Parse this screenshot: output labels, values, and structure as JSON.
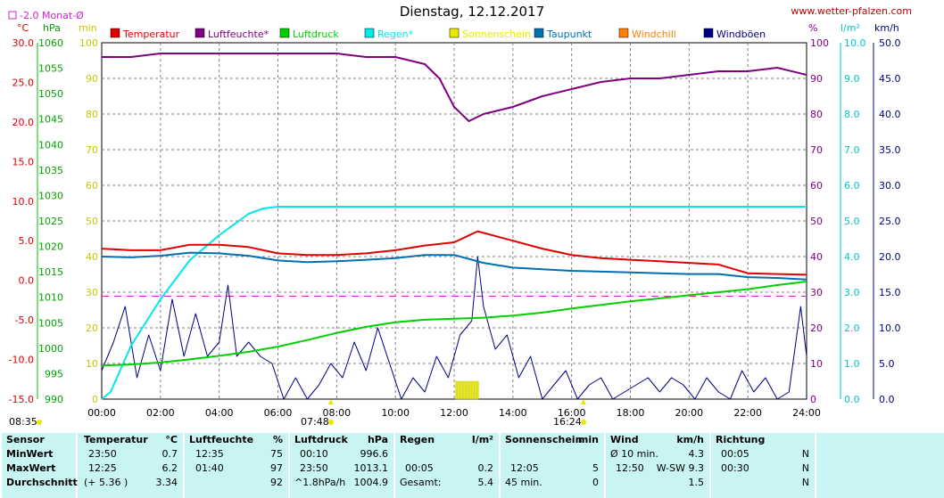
{
  "header": {
    "title": "Dienstag, 12.12.2017",
    "source": "www.wetter-pfalzen.com",
    "monthly_avg_note": "-2.0 Monat-Ø"
  },
  "axes": {
    "temp_unit": "°C",
    "press_unit": "hPa",
    "min_unit": "min",
    "pct_unit": "%",
    "rain_unit": "l/m²",
    "wind_unit": "km/h",
    "temp_ticks": [
      "30.0",
      "25.0",
      "20.0",
      "15.0",
      "10.0",
      "5.0",
      "0.0",
      "-5.0",
      "-10.0",
      "-15.0"
    ],
    "press_ticks": [
      "1060",
      "1055",
      "1050",
      "1045",
      "1040",
      "1035",
      "1030",
      "1025",
      "1020",
      "1015",
      "1010",
      "1005",
      "1000",
      "995",
      "990"
    ],
    "min_ticks": [
      "100",
      "90",
      "80",
      "70",
      "60",
      "50",
      "40",
      "30",
      "20",
      "10",
      "0"
    ],
    "pct_ticks": [
      "100",
      "90",
      "80",
      "70",
      "60",
      "50",
      "40",
      "30",
      "20",
      "10",
      "0"
    ],
    "rain_ticks": [
      "10.0",
      "9.0",
      "8.0",
      "7.0",
      "6.0",
      "5.0",
      "4.0",
      "3.0",
      "2.0",
      "1.0",
      "0.0"
    ],
    "wind_ticks": [
      "50.0",
      "45.0",
      "40.0",
      "35.0",
      "30.0",
      "25.0",
      "20.0",
      "15.0",
      "10.0",
      "5.0",
      "0.0"
    ],
    "time_ticks": [
      "00:00",
      "02:00",
      "04:00",
      "06:00",
      "08:00",
      "10:00",
      "12:00",
      "14:00",
      "16:00",
      "18:00",
      "20:00",
      "22:00",
      "24:00"
    ],
    "sunrise": "08:35",
    "noon_marker": "07:48",
    "sunset": "16:24"
  },
  "legend": [
    {
      "label": "Temperatur",
      "color": "#e00000"
    },
    {
      "label": "Luftfeuchte*",
      "color": "#800080"
    },
    {
      "label": "Luftdruck",
      "color": "#00d000"
    },
    {
      "label": "Regen*",
      "color": "#00e8e8"
    },
    {
      "label": "Sonnenschein",
      "color": "#e8e800"
    },
    {
      "label": "Taupunkt",
      "color": "#0070b0"
    },
    {
      "label": "Windchill",
      "color": "#ff8000"
    },
    {
      "label": "Windböen",
      "color": "#000080"
    }
  ],
  "chart_data": {
    "type": "line",
    "x_range": [
      "00:00",
      "24:00"
    ],
    "series": [
      {
        "name": "Temperatur",
        "unit": "°C",
        "x": [
          0,
          1,
          2,
          3,
          4,
          5,
          6,
          7,
          8,
          9,
          10,
          11,
          12,
          12.4,
          12.8,
          13.5,
          14,
          15,
          16,
          17,
          18,
          19,
          20,
          21,
          22,
          23,
          24
        ],
        "y": [
          4.0,
          3.8,
          3.8,
          4.5,
          4.5,
          4.2,
          3.4,
          3.2,
          3.2,
          3.4,
          3.8,
          4.4,
          4.8,
          5.5,
          6.2,
          5.5,
          5.0,
          4.0,
          3.2,
          2.8,
          2.6,
          2.4,
          2.2,
          2.0,
          0.9,
          0.8,
          0.7
        ]
      },
      {
        "name": "Luftfeuchte*",
        "unit": "%",
        "x": [
          0,
          1,
          2,
          3,
          4,
          5,
          6,
          7,
          8,
          9,
          10,
          11,
          11.5,
          12,
          12.5,
          13,
          13.5,
          14,
          15,
          16,
          17,
          18,
          19,
          20,
          21,
          22,
          23,
          24
        ],
        "y": [
          96,
          96,
          97,
          97,
          97,
          97,
          97,
          97,
          97,
          96,
          96,
          94,
          90,
          82,
          78,
          80,
          81,
          82,
          85,
          87,
          89,
          90,
          90,
          91,
          92,
          92,
          93,
          91
        ]
      },
      {
        "name": "Luftdruck",
        "unit": "hPa",
        "x": [
          0,
          1,
          2,
          3,
          4,
          5,
          6,
          7,
          8,
          9,
          10,
          11,
          12,
          13,
          14,
          15,
          16,
          17,
          18,
          19,
          20,
          21,
          22,
          23,
          24
        ],
        "y": [
          996.6,
          996.8,
          997.2,
          997.8,
          998.5,
          999.3,
          1000.3,
          1001.6,
          1003.0,
          1004.2,
          1005.1,
          1005.6,
          1005.8,
          1006.0,
          1006.4,
          1007.0,
          1007.8,
          1008.5,
          1009.2,
          1009.8,
          1010.4,
          1011.0,
          1011.6,
          1012.4,
          1013.1
        ]
      },
      {
        "name": "Regen*",
        "unit": "l/m²",
        "x": [
          0,
          0.3,
          1,
          2,
          3,
          4,
          5,
          5.5,
          6,
          24
        ],
        "y": [
          0.0,
          0.2,
          1.5,
          2.8,
          3.9,
          4.6,
          5.2,
          5.35,
          5.4,
          5.4
        ]
      },
      {
        "name": "Taupunkt",
        "unit": "°C",
        "x": [
          0,
          1,
          2,
          3,
          4,
          5,
          6,
          7,
          8,
          9,
          10,
          11,
          12,
          13,
          14,
          15,
          16,
          17,
          18,
          19,
          20,
          21,
          22,
          23,
          24
        ],
        "y": [
          3.0,
          2.9,
          3.1,
          3.5,
          3.4,
          3.1,
          2.5,
          2.3,
          2.4,
          2.6,
          2.8,
          3.2,
          3.2,
          2.2,
          1.6,
          1.4,
          1.2,
          1.1,
          1.0,
          0.9,
          0.8,
          0.8,
          0.4,
          0.3,
          0.1
        ]
      },
      {
        "name": "Windböen",
        "unit": "km/h",
        "x": [
          0,
          0.4,
          0.8,
          1.2,
          1.6,
          2,
          2.4,
          2.8,
          3.2,
          3.6,
          4,
          4.3,
          4.6,
          5,
          5.4,
          5.8,
          6.2,
          6.6,
          7,
          7.4,
          7.8,
          8.2,
          8.6,
          9,
          9.4,
          9.8,
          10.2,
          10.6,
          11,
          11.4,
          11.8,
          12.2,
          12.6,
          12.8,
          13,
          13.4,
          13.8,
          14.2,
          14.6,
          15,
          15.4,
          15.8,
          16.2,
          16.6,
          17,
          17.4,
          17.8,
          18.2,
          18.6,
          19,
          19.4,
          19.8,
          20.2,
          20.6,
          21,
          21.4,
          21.8,
          22.2,
          22.6,
          23,
          23.4,
          23.8,
          24
        ],
        "y": [
          4,
          8,
          13,
          3,
          9,
          4,
          14,
          6,
          12,
          6,
          8,
          16,
          6,
          8,
          6,
          5,
          0,
          3,
          0,
          2,
          5,
          3,
          8,
          4,
          10,
          5,
          0,
          3,
          1,
          6,
          3,
          9,
          11,
          20,
          13,
          7,
          9,
          3,
          6,
          0,
          2,
          4,
          0,
          2,
          3,
          0,
          1,
          2,
          3,
          1,
          3,
          2,
          0,
          3,
          1,
          0,
          4,
          1,
          3,
          0,
          1,
          13,
          6
        ]
      }
    ],
    "reference_lines": [
      {
        "name": "-2.0 Monat-Ø",
        "unit": "°C",
        "y": -2.0
      }
    ],
    "sunshine_minutes": {
      "start": "12:05",
      "end": "12:50",
      "total_min": 45
    }
  },
  "stats": {
    "sensor": {
      "header": "Sensor",
      "rows": [
        "MinWert",
        "MaxWert",
        "Durchschnitt"
      ]
    },
    "temperature": {
      "header": "Temperatur",
      "unit": "°C",
      "rows": [
        [
          "23:50",
          "0.7"
        ],
        [
          "12:25",
          "6.2"
        ],
        [
          "(+ 5.36 )",
          "3.34"
        ]
      ]
    },
    "humidity": {
      "header": "Luftfeuchte",
      "unit": "%",
      "rows": [
        [
          "12:35",
          "75"
        ],
        [
          "01:40",
          "97"
        ],
        [
          "",
          "92"
        ]
      ]
    },
    "pressure": {
      "header": "Luftdruck",
      "unit": "hPa",
      "rows": [
        [
          "00:10",
          "996.6"
        ],
        [
          "23:50",
          "1013.1"
        ],
        [
          "^1.8hPa/h",
          "1004.9"
        ]
      ]
    },
    "rain": {
      "header": "Regen",
      "unit": "l/m²",
      "rows": [
        [
          "",
          ""
        ],
        [
          "00:05",
          "0.2"
        ],
        [
          "Gesamt:",
          "5.4"
        ]
      ]
    },
    "sunshine": {
      "header": "Sonnenschein",
      "unit": "min",
      "rows": [
        [
          "",
          ""
        ],
        [
          "12:05",
          "5"
        ],
        [
          "45 min.",
          "0"
        ]
      ]
    },
    "wind": {
      "header": "Wind",
      "unit": "km/h",
      "rows": [
        [
          "Ø 10 min.",
          "4.3"
        ],
        [
          "12:50",
          "W-SW 9.3"
        ],
        [
          "",
          "1.5"
        ]
      ]
    },
    "direction": {
      "header": "Richtung",
      "rows": [
        [
          "00:05",
          "N"
        ],
        [
          "00:30",
          "N"
        ],
        [
          "",
          "N"
        ]
      ]
    }
  }
}
